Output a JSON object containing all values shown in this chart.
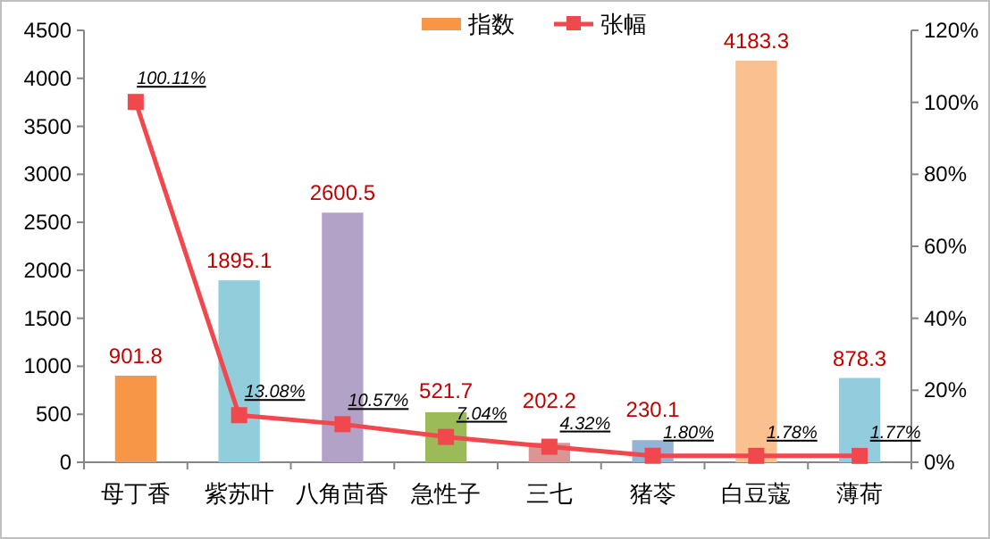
{
  "chart_data": {
    "type": "bar",
    "categories": [
      "母丁香",
      "紫苏叶",
      "八角茴香",
      "急性子",
      "三七",
      "猪苓",
      "白豆蔻",
      "薄荷"
    ],
    "series": [
      {
        "name": "指数",
        "colors": [
          "#f79646",
          "#92cddc",
          "#b3a2c7",
          "#9bbb59",
          "#d99694",
          "#95b3d7",
          "#fac090",
          "#93cddd"
        ],
        "values": [
          901.8,
          1895.1,
          2600.5,
          521.7,
          202.2,
          230.1,
          4183.3,
          878.3
        ],
        "value_labels": [
          "901.8",
          "1895.1",
          "2600.5",
          "521.7",
          "202.2",
          "230.1",
          "4183.3",
          "878.3"
        ]
      },
      {
        "name": "张幅",
        "type": "line",
        "axis": "y2",
        "color": "#f0484c",
        "marker": "square",
        "values": [
          100.11,
          13.08,
          10.57,
          7.04,
          4.32,
          1.8,
          1.78,
          1.77
        ],
        "value_labels": [
          "100.11%",
          "13.08%",
          "10.57%",
          "7.04%",
          "4.32%",
          "1.80%",
          "1.78%",
          "1.77%"
        ]
      }
    ],
    "ylim": [
      0,
      4500
    ],
    "yticks": [
      0,
      500,
      1000,
      1500,
      2000,
      2500,
      3000,
      3500,
      4000,
      4500
    ],
    "y2lim": [
      0,
      120
    ],
    "y2ticks": [
      {
        "value": 0,
        "label": "0%"
      },
      {
        "value": 20,
        "label": "20%"
      },
      {
        "value": 40,
        "label": "40%"
      },
      {
        "value": 60,
        "label": "60%"
      },
      {
        "value": 80,
        "label": "80%"
      },
      {
        "value": 100,
        "label": "100%"
      },
      {
        "value": 120,
        "label": "120%"
      }
    ],
    "legend": "top",
    "grid": false
  }
}
